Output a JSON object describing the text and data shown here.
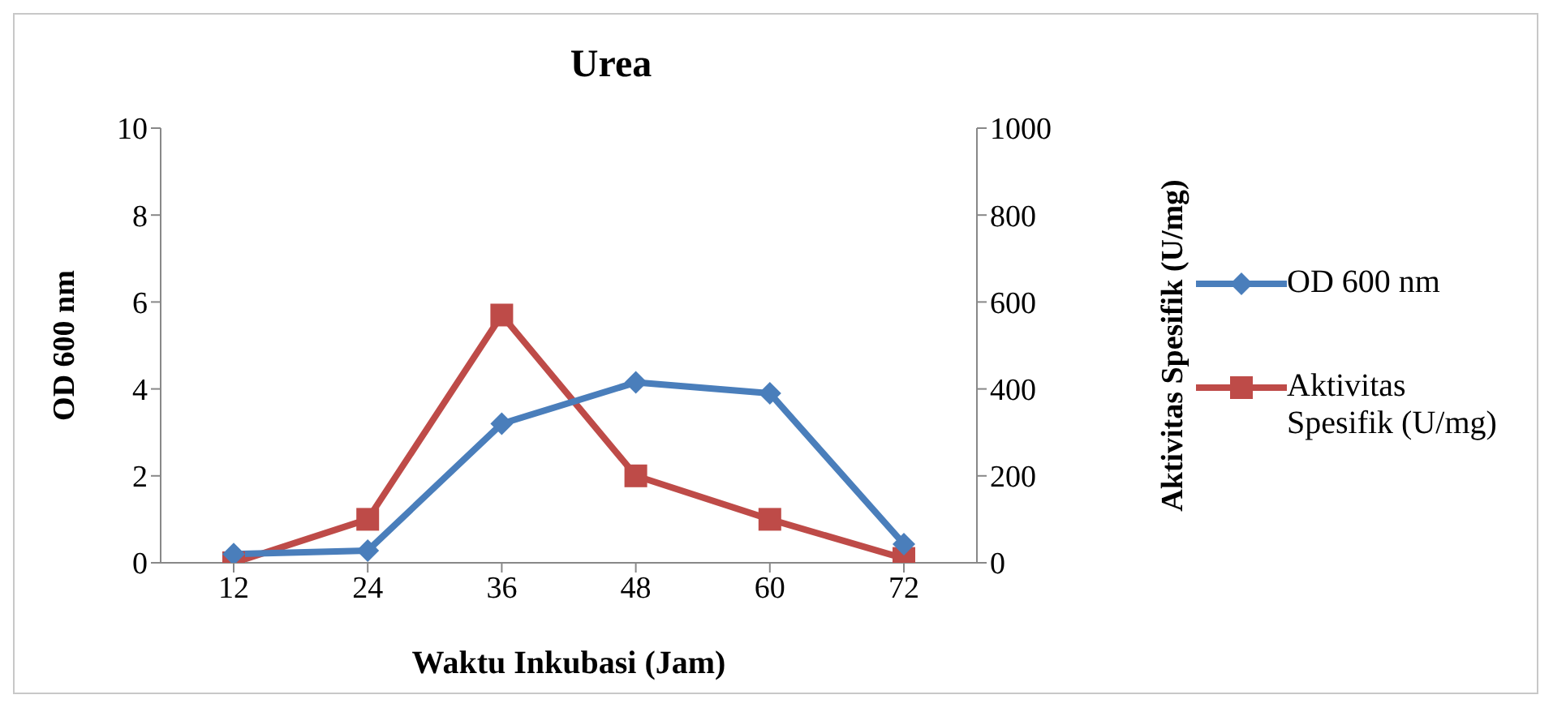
{
  "chart_data": {
    "type": "line",
    "title": "Urea",
    "xlabel": "Waktu Inkubasi (Jam)",
    "ylabel": "OD 600 nm",
    "y2label": "Aktivitas Spesifik (U/mg)",
    "categories": [
      "12",
      "24",
      "36",
      "48",
      "60",
      "72"
    ],
    "series": [
      {
        "name": "OD 600 nm",
        "color": "#4a7ebb",
        "marker": "diamond",
        "values": [
          0.2,
          0.28,
          3.2,
          4.15,
          3.9,
          0.43
        ]
      },
      {
        "name": "Aktivitas Spesifik (U/mg)",
        "color": "#be4b48",
        "marker": "square",
        "axis": "y2",
        "values": [
          0,
          100,
          570,
          200,
          100,
          10
        ]
      }
    ],
    "ylim": [
      0,
      10
    ],
    "yticks": [
      0,
      2,
      4,
      6,
      8,
      10
    ],
    "y2lim": [
      0,
      1000
    ],
    "y2ticks": [
      0,
      200,
      400,
      600,
      800,
      1000
    ],
    "grid": false,
    "legend": "right",
    "line_style": "solid"
  }
}
